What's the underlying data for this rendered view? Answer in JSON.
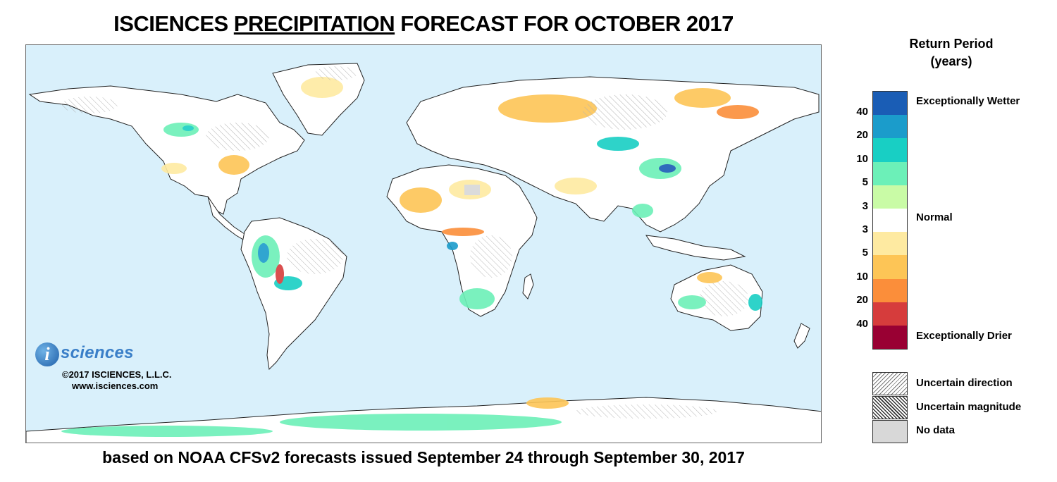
{
  "header": {
    "title_pre": "ISCIENCES ",
    "title_emph": "PRECIPITATION",
    "title_post": " FORECAST FOR OCTOBER 2017",
    "subtitle": "based on NOAA CFSv2 forecasts issued September 24 through September 30, 2017"
  },
  "logo": {
    "mark": "i",
    "name": "sciences",
    "copyright": "©2017 ISCIENCES, L.L.C.",
    "website": "www.isciences.com"
  },
  "legend": {
    "title_line1": "Return Period",
    "title_line2": "(years)",
    "swatches": [
      "#1a5db5",
      "#1b9ccb",
      "#18cfc4",
      "#6cf0b8",
      "#c9fba6",
      "#ffffff",
      "#feeaa1",
      "#fdc556",
      "#fb8e3a",
      "#d63c3c",
      "#990033"
    ],
    "ticks": [
      "40",
      "20",
      "10",
      "5",
      "3",
      "3",
      "5",
      "10",
      "20",
      "40"
    ],
    "labels": {
      "wetter": "Exceptionally Wetter",
      "normal": "Normal",
      "drier": "Exceptionally Drier"
    },
    "patterns": {
      "direction": "Uncertain direction",
      "magnitude": "Uncertain magnitude",
      "nodata": "No data"
    }
  },
  "map": {
    "ocean_color": "#d9f0fb",
    "land_color": "#ffffff",
    "border_color": "#222222"
  }
}
